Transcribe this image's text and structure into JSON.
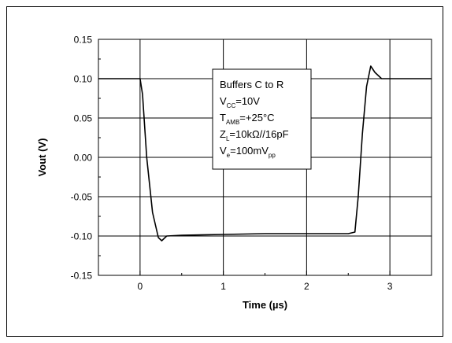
{
  "chart_data": {
    "type": "line",
    "title": "",
    "xlabel": "Time (µs)",
    "ylabel": "Vout (V)",
    "xlim": [
      -0.5,
      3.5
    ],
    "ylim": [
      -0.15,
      0.15
    ],
    "x_ticks": [
      0,
      1,
      2,
      3
    ],
    "x_tick_labels": [
      "0",
      "1",
      "2",
      "3"
    ],
    "y_ticks": [
      -0.15,
      -0.1,
      -0.05,
      0.0,
      0.05,
      0.1,
      0.15
    ],
    "y_tick_labels": [
      "-0.15",
      "-0.10",
      "-0.05",
      "0.00",
      "0.05",
      "0.10",
      "0.15"
    ],
    "grid": true,
    "series": [
      {
        "name": "",
        "x": [
          -0.5,
          -0.3,
          -0.1,
          0.0,
          0.03,
          0.08,
          0.15,
          0.22,
          0.26,
          0.32,
          0.5,
          1.0,
          1.5,
          2.0,
          2.5,
          2.58,
          2.62,
          2.67,
          2.72,
          2.77,
          2.82,
          2.9,
          3.2,
          3.5
        ],
        "y": [
          0.1,
          0.1,
          0.1,
          0.1,
          0.08,
          0.0,
          -0.07,
          -0.102,
          -0.106,
          -0.1,
          -0.099,
          -0.098,
          -0.097,
          -0.097,
          -0.097,
          -0.095,
          -0.05,
          0.03,
          0.09,
          0.116,
          0.108,
          0.1,
          0.1,
          0.1
        ]
      }
    ],
    "annotation_box": {
      "lines": [
        {
          "main": "Buffers C to R",
          "sub": "",
          "rest": ""
        },
        {
          "main": "V",
          "sub": "CC",
          "rest": "=10V"
        },
        {
          "main": "T",
          "sub": "AMB",
          "rest": "=+25°C"
        },
        {
          "main": "Z",
          "sub": "L",
          "rest": "=10kΩ//16pF"
        },
        {
          "main": "V",
          "sub": "e",
          "rest": "=100mV",
          "sub2": "pp"
        }
      ]
    }
  }
}
